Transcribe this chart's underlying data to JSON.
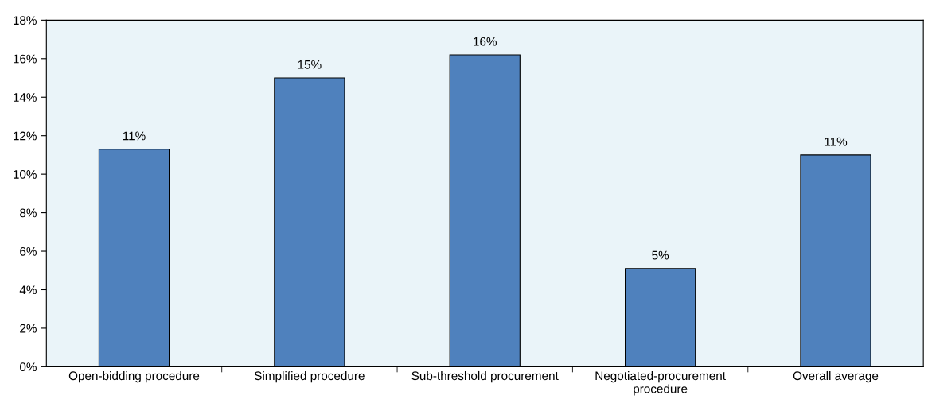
{
  "chart_data": {
    "type": "bar",
    "categories": [
      "Open-bidding procedure",
      "Simplified procedure",
      "Sub-threshold procurement",
      "Negotiated-procurement\nprocedure",
      "Overall average"
    ],
    "values": [
      11.3,
      15.0,
      16.2,
      5.1,
      11.0
    ],
    "value_labels": [
      "11%",
      "15%",
      "16%",
      "5%",
      "11%"
    ],
    "color": "#4f81bd",
    "ylim": [
      0,
      18
    ],
    "yticks": [
      {
        "value": 0,
        "label": "0%"
      },
      {
        "value": 2,
        "label": "2%"
      },
      {
        "value": 4,
        "label": "4%"
      },
      {
        "value": 6,
        "label": "6%"
      },
      {
        "value": 8,
        "label": "8%"
      },
      {
        "value": 10,
        "label": "10%"
      },
      {
        "value": 12,
        "label": "12%"
      },
      {
        "value": 14,
        "label": "14%"
      },
      {
        "value": 16,
        "label": "16%"
      },
      {
        "value": 18,
        "label": "18%"
      }
    ],
    "grid": false,
    "legend": false
  }
}
